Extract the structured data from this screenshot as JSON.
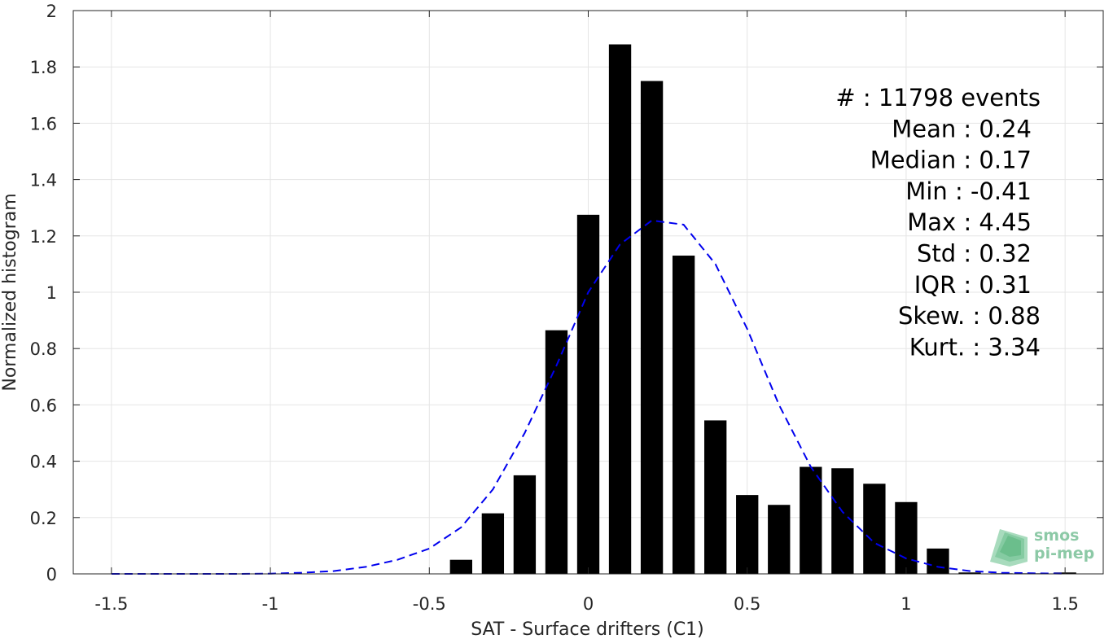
{
  "chart_data": {
    "type": "bar",
    "xlabel": "SAT - Surface drifters (C1)",
    "ylabel": "Normalized histogram",
    "xlim": [
      -1.62,
      1.62
    ],
    "ylim": [
      0,
      2
    ],
    "xticks": [
      -1.5,
      -1,
      -0.5,
      0,
      0.5,
      1,
      1.5
    ],
    "xtick_labels": [
      "-1.5",
      "-1",
      "-0.5",
      "0",
      "0.5",
      "1",
      "1.5"
    ],
    "yticks": [
      0,
      0.2,
      0.4,
      0.6,
      0.8,
      1,
      1.2,
      1.4,
      1.6,
      1.8,
      2
    ],
    "ytick_labels": [
      "0",
      "0.2",
      "0.4",
      "0.6",
      "0.8",
      "1",
      "1.2",
      "1.4",
      "1.6",
      "1.8",
      "2"
    ],
    "grid": true,
    "bar_color": "#000000",
    "bar_width": 0.07,
    "bars": {
      "x": [
        -0.4,
        -0.3,
        -0.2,
        -0.1,
        0.0,
        0.1,
        0.2,
        0.3,
        0.4,
        0.5,
        0.6,
        0.7,
        0.8,
        0.9,
        1.0,
        1.1,
        1.2,
        1.3,
        1.4,
        1.5
      ],
      "values": [
        0.05,
        0.215,
        0.35,
        0.865,
        1.275,
        1.88,
        1.75,
        1.13,
        0.545,
        0.28,
        0.245,
        0.38,
        0.375,
        0.32,
        0.255,
        0.09,
        0.005,
        0.002,
        0.002,
        0.005
      ]
    },
    "fit_curve": {
      "style": "dashed",
      "color": "#0000ee",
      "x": [
        -1.5,
        -1.4,
        -1.3,
        -1.2,
        -1.1,
        -1.0,
        -0.9,
        -0.8,
        -0.7,
        -0.6,
        -0.5,
        -0.4,
        -0.3,
        -0.2,
        -0.1,
        0.0,
        0.1,
        0.2,
        0.3,
        0.4,
        0.5,
        0.6,
        0.7,
        0.8,
        0.9,
        1.0,
        1.1,
        1.2,
        1.3,
        1.4,
        1.5
      ],
      "y": [
        0.0,
        0.0,
        0.0,
        0.0,
        0.0,
        0.001,
        0.004,
        0.01,
        0.025,
        0.05,
        0.09,
        0.165,
        0.3,
        0.5,
        0.74,
        1.0,
        1.17,
        1.255,
        1.24,
        1.1,
        0.87,
        0.6,
        0.38,
        0.22,
        0.11,
        0.055,
        0.025,
        0.01,
        0.004,
        0.002,
        0.001
      ]
    },
    "stats_lines": [
      "#  : 11798 events",
      "Mean : 0.24",
      "Median : 0.17",
      "Min : -0.41",
      "Max : 4.45",
      "Std : 0.32",
      "IQR : 0.31",
      "Skew. : 0.88",
      "Kurt. : 3.34"
    ]
  },
  "logo": {
    "line1": "smos",
    "line2": "pi-mep"
  }
}
